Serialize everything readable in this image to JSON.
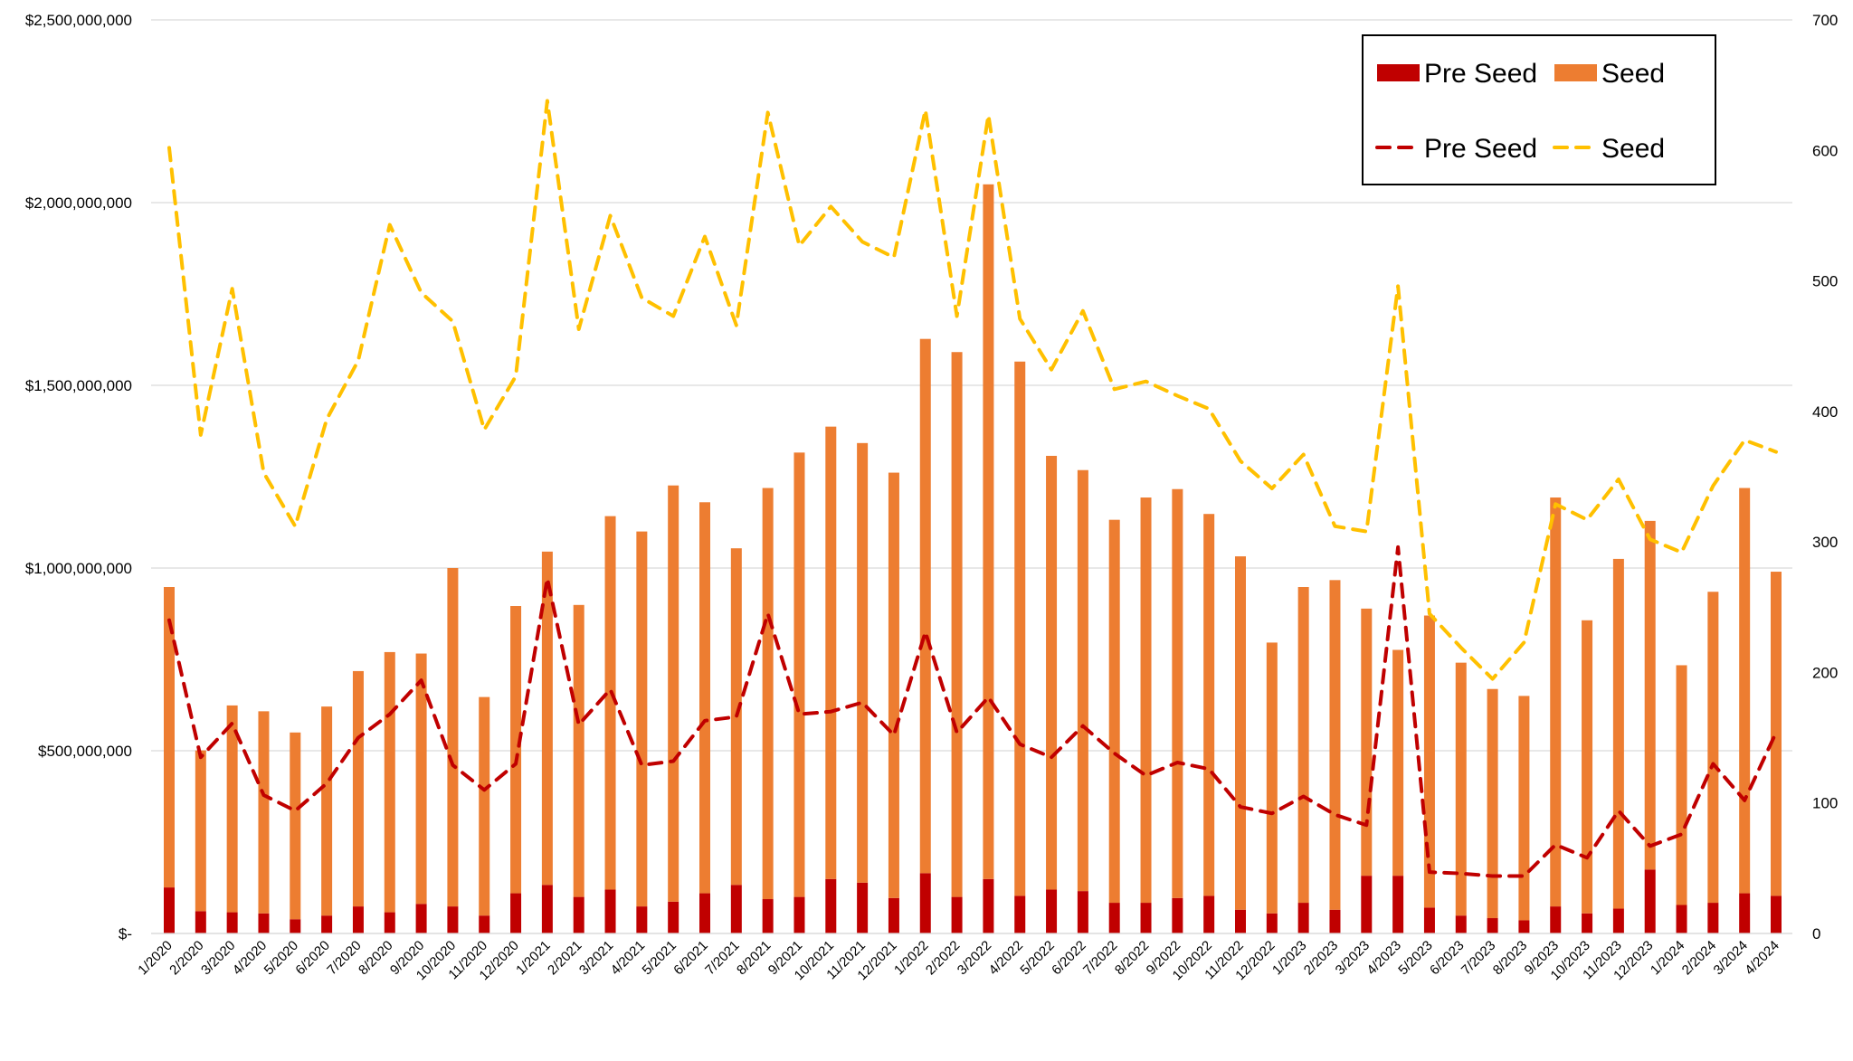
{
  "chart_data": {
    "type": "bar",
    "title": "",
    "xlabel": "",
    "ylabel": "",
    "y2label": "",
    "ylim": [
      0,
      2500000000
    ],
    "y2lim": [
      0,
      700
    ],
    "grid": true,
    "legend_position": "top-right",
    "yticks": [
      "$-",
      "$500,000,000",
      "$1,000,000,000",
      "$1,500,000,000",
      "$2,000,000,000",
      "$2,500,000,000"
    ],
    "ytick_values": [
      0,
      500000000,
      1000000000,
      1500000000,
      2000000000,
      2500000000
    ],
    "y2ticks": [
      "0",
      "100",
      "200",
      "300",
      "400",
      "500",
      "600",
      "700"
    ],
    "y2tick_values": [
      0,
      100,
      200,
      300,
      400,
      500,
      600,
      700
    ],
    "categories": [
      "1/2020",
      "2/2020",
      "3/2020",
      "4/2020",
      "5/2020",
      "6/2020",
      "7/2020",
      "8/2020",
      "9/2020",
      "10/2020",
      "11/2020",
      "12/2020",
      "1/2021",
      "2/2021",
      "3/2021",
      "4/2021",
      "5/2021",
      "6/2021",
      "7/2021",
      "8/2021",
      "9/2021",
      "10/2021",
      "11/2021",
      "12/2021",
      "1/2022",
      "2/2022",
      "3/2022",
      "4/2022",
      "5/2022",
      "6/2022",
      "7/2022",
      "8/2022",
      "9/2022",
      "10/2022",
      "11/2022",
      "12/2022",
      "1/2023",
      "2/2023",
      "3/2023",
      "4/2023",
      "5/2023",
      "6/2023",
      "7/2023",
      "8/2023",
      "9/2023",
      "10/2023",
      "11/2023",
      "12/2023",
      "1/2024",
      "2/2024",
      "3/2024",
      "4/2024"
    ],
    "series": [
      {
        "name": "Pre Seed",
        "kind": "bar",
        "axis": "left",
        "color": "#C00000",
        "unit": "USD millions",
        "values": [
          126,
          61,
          58,
          55,
          39,
          49,
          74,
          58,
          81,
          74,
          49,
          110,
          133,
          100,
          120,
          74,
          87,
          110,
          133,
          94,
          100,
          149,
          139,
          97,
          165,
          100,
          149,
          103,
          120,
          116,
          84,
          84,
          97,
          103,
          65,
          55,
          84,
          65,
          158,
          158,
          71,
          49,
          42,
          36,
          74,
          55,
          68,
          175,
          78,
          84,
          110,
          103
        ]
      },
      {
        "name": "Seed",
        "kind": "bar",
        "axis": "left",
        "color": "#ED7D31",
        "unit": "USD millions",
        "values": [
          822,
          440,
          566,
          553,
          511,
          572,
          644,
          712,
          685,
          926,
          598,
          786,
          912,
          799,
          1022,
          1026,
          1139,
          1070,
          921,
          1125,
          1216,
          1238,
          1203,
          1164,
          1462,
          1491,
          1901,
          1462,
          1187,
          1152,
          1048,
          1109,
          1119,
          1045,
          967,
          741,
          864,
          902,
          731,
          618,
          799,
          692,
          627,
          614,
          1119,
          802,
          957,
          954,
          656,
          851,
          1109,
          887
        ]
      },
      {
        "name": "Pre Seed",
        "kind": "line",
        "axis": "right",
        "color": "#C00000",
        "dashed": true,
        "values": [
          240,
          135,
          161,
          106,
          94,
          115,
          150,
          168,
          194,
          129,
          110,
          130,
          272,
          160,
          187,
          129,
          132,
          163,
          166,
          245,
          168,
          170,
          177,
          152,
          231,
          154,
          181,
          145,
          135,
          159,
          138,
          121,
          131,
          126,
          97,
          92,
          105,
          91,
          83,
          296,
          47,
          46,
          44,
          44,
          68,
          58,
          94,
          67,
          76,
          130,
          102,
          154
        ]
      },
      {
        "name": "Seed",
        "kind": "line",
        "axis": "right",
        "color": "#FFC000",
        "dashed": true,
        "values": [
          602,
          382,
          494,
          353,
          312,
          394,
          439,
          543,
          491,
          469,
          386,
          427,
          638,
          463,
          550,
          487,
          473,
          534,
          466,
          629,
          527,
          557,
          530,
          518,
          631,
          473,
          627,
          471,
          432,
          477,
          417,
          423,
          412,
          402,
          362,
          341,
          367,
          312,
          308,
          496,
          245,
          219,
          195,
          223,
          329,
          317,
          348,
          302,
          292,
          343,
          378,
          369
        ]
      }
    ],
    "legend": [
      "Pre Seed",
      "Seed",
      "Pre Seed",
      "Seed"
    ]
  }
}
